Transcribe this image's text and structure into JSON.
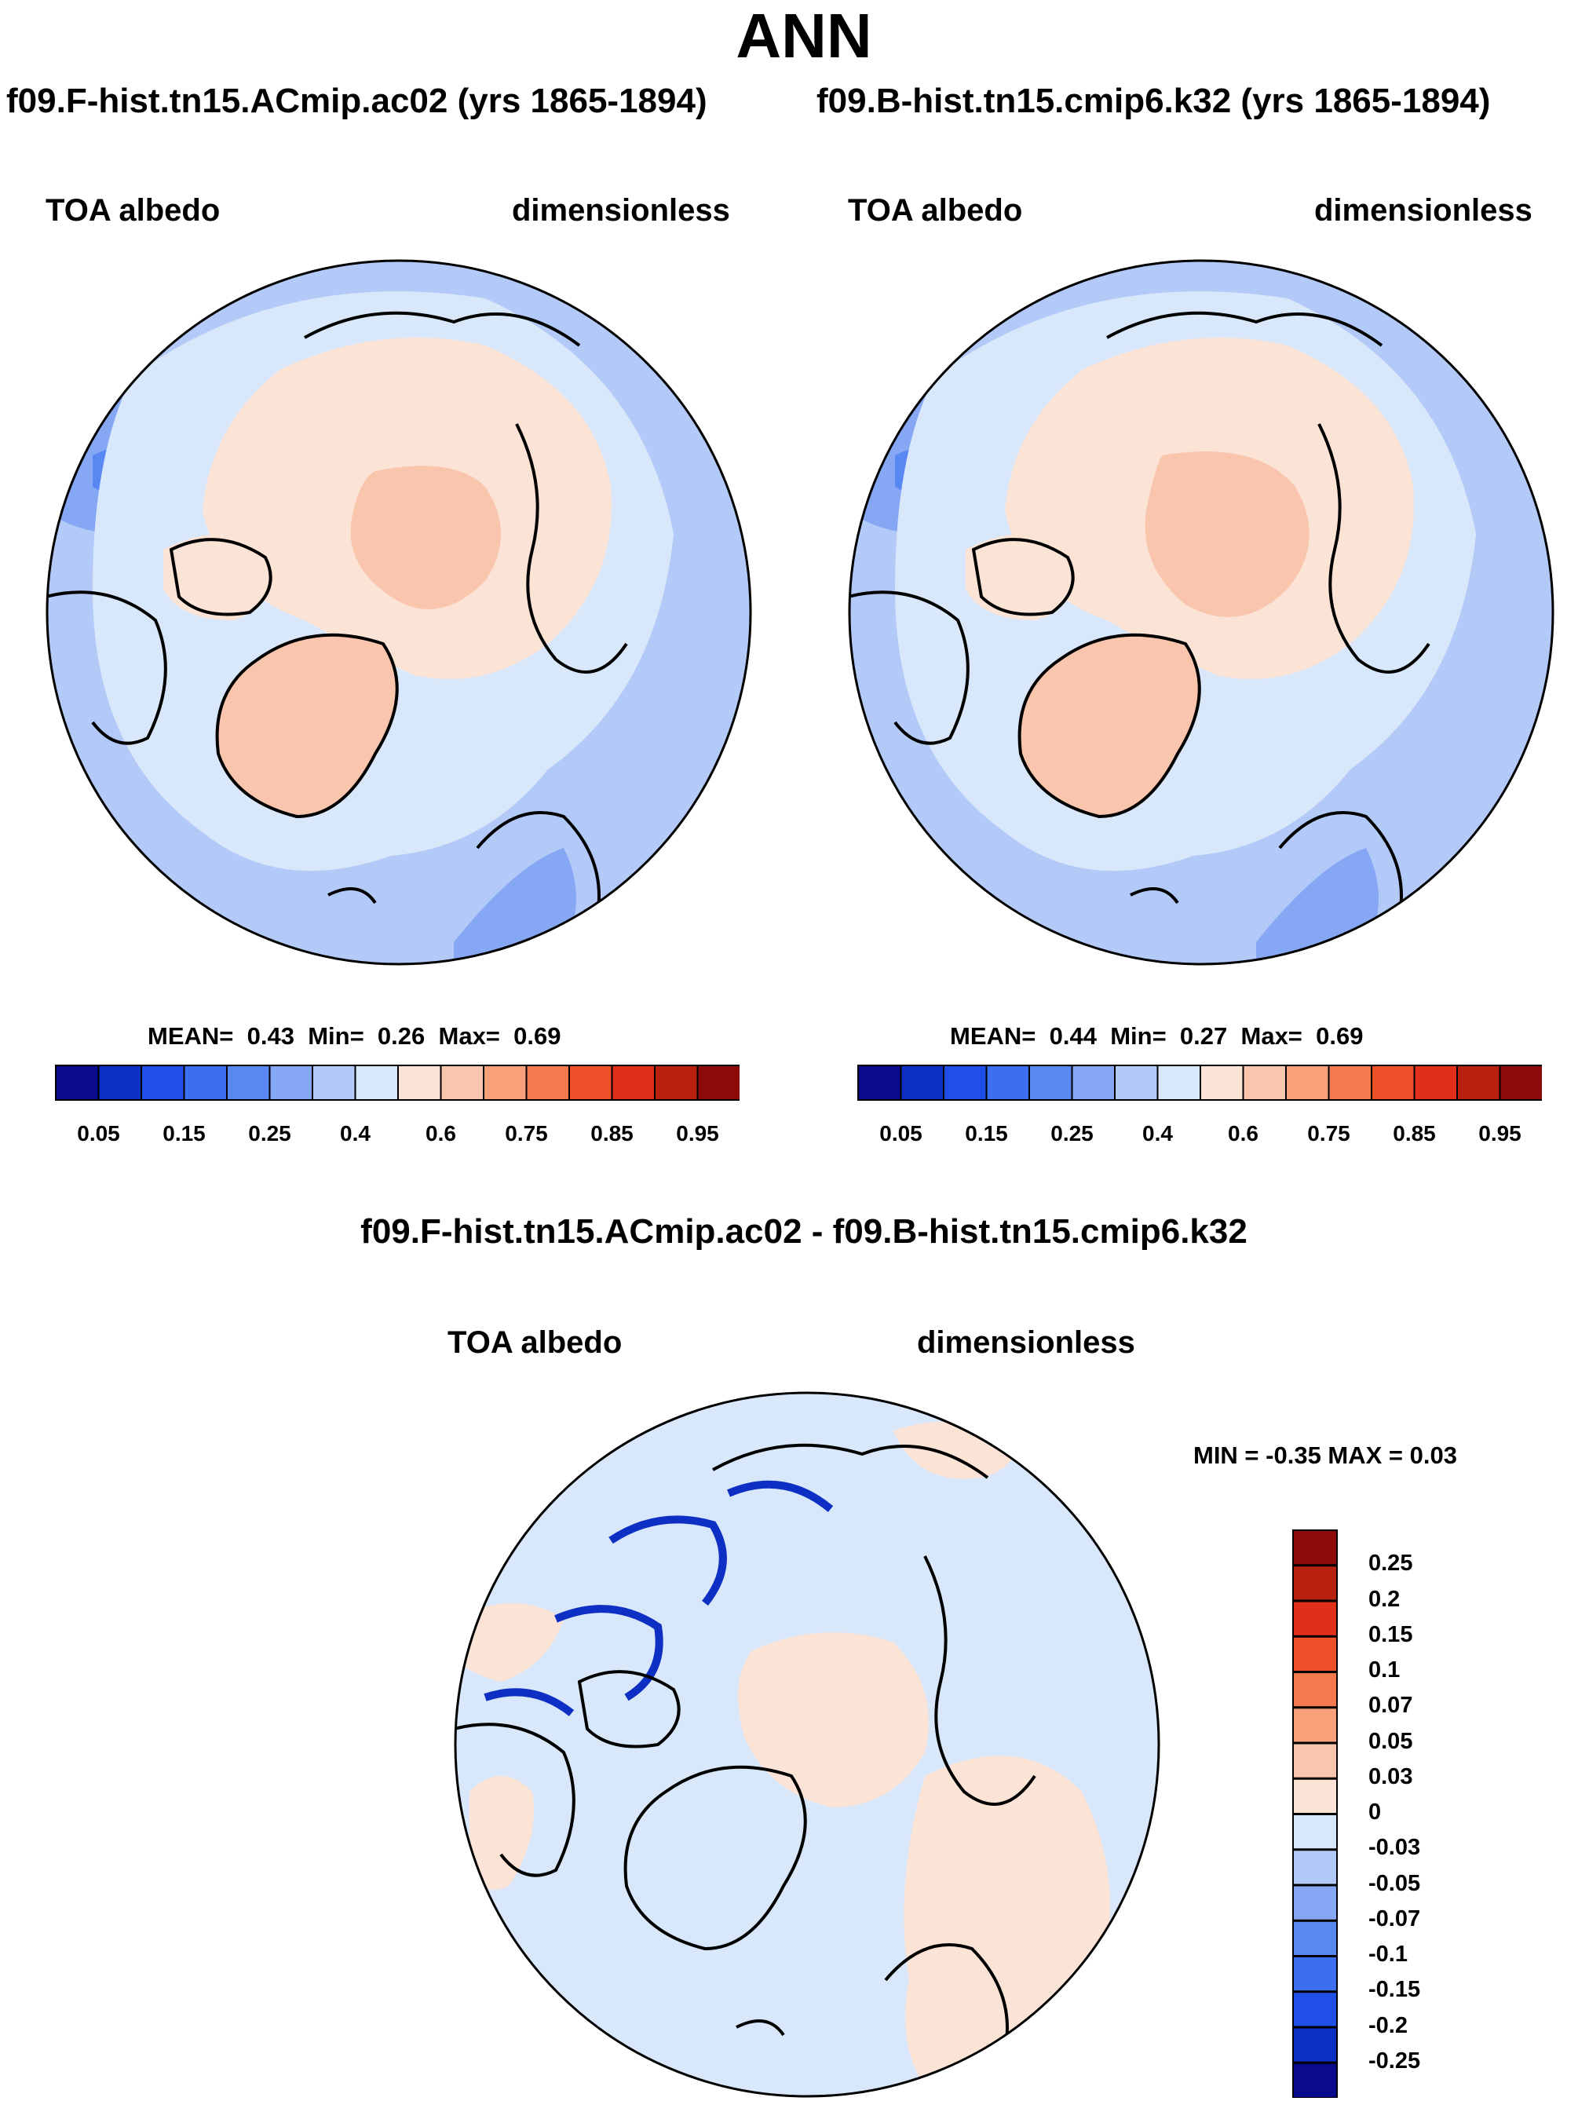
{
  "title": "ANN",
  "panels": [
    {
      "case": "f09.F-hist.tn15.ACmip.ac02 (yrs 1865-1894)",
      "variable": "TOA albedo",
      "units": "dimensionless",
      "stats": {
        "mean_label": "MEAN=",
        "mean": "0.43",
        "min_label": "Min=",
        "min": "0.26",
        "max_label": "Max=",
        "max": "0.69"
      }
    },
    {
      "case": "f09.B-hist.tn15.cmip6.k32 (yrs 1865-1894)",
      "variable": "TOA albedo",
      "units": "dimensionless",
      "stats": {
        "mean_label": "MEAN=",
        "mean": "0.44",
        "min_label": "Min=",
        "min": "0.27",
        "max_label": "Max=",
        "max": "0.69"
      }
    }
  ],
  "colorbar": {
    "labels": [
      "0.05",
      "0.15",
      "0.25",
      "0.4",
      "0.6",
      "0.75",
      "0.85",
      "0.95"
    ],
    "colors": [
      "#0a0a8c",
      "#0d2fc4",
      "#1f4fe6",
      "#3b6ff0",
      "#5a88f2",
      "#86a8f4",
      "#b3c9f7",
      "#d9e7fb",
      "#fbe3d6",
      "#f9c5ad",
      "#f7a07a",
      "#f47a4d",
      "#f0502a",
      "#e0301a",
      "#b8200f",
      "#8c0a0a"
    ]
  },
  "difference": {
    "title": "f09.F-hist.tn15.ACmip.ac02 - f09.B-hist.tn15.cmip6.k32",
    "variable": "TOA albedo",
    "units": "dimensionless",
    "minmax": "MIN =  -0.35 MAX =   0.03",
    "colorbar_labels": [
      "0.25",
      "0.2",
      "0.15",
      "0.1",
      "0.07",
      "0.05",
      "0.03",
      "0",
      "-0.03",
      "-0.05",
      "-0.07",
      "-0.1",
      "-0.15",
      "-0.2",
      "-0.25"
    ],
    "colorbar_colors": [
      "#8c0a0a",
      "#b8200f",
      "#e0301a",
      "#f0502a",
      "#f47a4d",
      "#f7a07a",
      "#f9c5ad",
      "#fbe3d6",
      "#d9e7fb",
      "#b3c9f7",
      "#86a8f4",
      "#5a88f2",
      "#3b6ff0",
      "#1f4fe6",
      "#0d2fc4",
      "#0a0a8c"
    ]
  },
  "map_colors": {
    "ocean_mid": "#b3c9f7",
    "ocean_low": "#86a8f4",
    "ocean_deep": "#5a88f2",
    "sea_ice": "#d9e7fb",
    "arctic_land": "#fbe3d6",
    "greenland": "#f9c5ad",
    "diff_background": "#d9e7fb",
    "diff_positive": "#fbe3d6",
    "diff_negative": "#0d2fc4"
  }
}
